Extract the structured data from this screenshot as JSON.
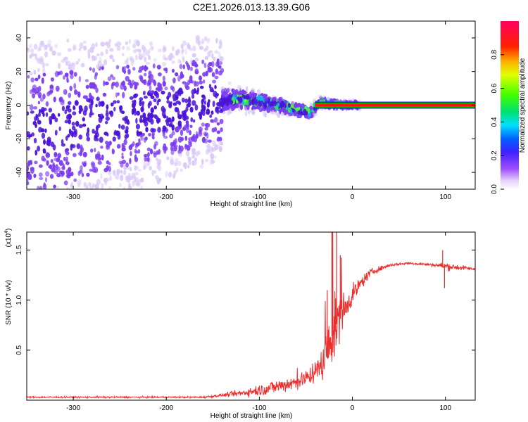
{
  "title": "C2E1.2026.013.13.39.G06",
  "colors": {
    "scatter_low": "#d9c8f7",
    "scatter_mid": "#7a3cf0",
    "scatter_high": "#4a14d8",
    "line": "#ee2d2d",
    "band_red": "#ff1010",
    "band_green": "#00c000",
    "band_blue": "#1010ff"
  },
  "chart_data": [
    {
      "type": "heatmap",
      "title": "C2E1.2026.013.13.39.G06",
      "xlabel": "Height of straight line (km)",
      "ylabel": "Frequency (Hz)",
      "xlim": [
        -350,
        132
      ],
      "ylim": [
        -50,
        50
      ],
      "xticks": [
        "-300",
        "-200",
        "-100",
        "0",
        "100"
      ],
      "xtick_values": [
        -300,
        -200,
        -100,
        0,
        100
      ],
      "yticks": [
        "40",
        "20",
        "0",
        "-20",
        "-40"
      ],
      "ytick_values": [
        40,
        20,
        0,
        -20,
        -40
      ],
      "colorbar": {
        "label": "Normalized spectral amplitude",
        "range": [
          0,
          1
        ],
        "ticks": [
          "0.0",
          "0.2",
          "0.4",
          "0.6",
          "0.8"
        ],
        "tick_values": [
          0.0,
          0.2,
          0.4,
          0.6,
          0.8
        ],
        "colormap": "rainbow (violet-blue-cyan-green-yellow-red-magenta)"
      },
      "density": {
        "x_break": -140,
        "spread_hz_left_edge": 60,
        "spread_hz_at_break": 40,
        "spread_hz_at_zero": 3,
        "center_track": [
          {
            "x": -350,
            "y": -18
          },
          {
            "x": -300,
            "y": -12
          },
          {
            "x": -250,
            "y": -7
          },
          {
            "x": -200,
            "y": -3
          },
          {
            "x": -150,
            "y": 2
          },
          {
            "x": -120,
            "y": 4
          },
          {
            "x": -100,
            "y": 2
          },
          {
            "x": -80,
            "y": 0
          },
          {
            "x": -60,
            "y": -3
          },
          {
            "x": -45,
            "y": -4
          },
          {
            "x": -35,
            "y": 2
          },
          {
            "x": -25,
            "y": 1
          },
          {
            "x": -10,
            "y": 0
          },
          {
            "x": 0,
            "y": 0
          }
        ]
      },
      "steady_band": {
        "x_start": -40,
        "x_end": 132,
        "y": 0,
        "amplitude": "max"
      }
    },
    {
      "type": "line",
      "title": "",
      "xlabel": "Height of straight line (km)",
      "ylabel": "SNR (10 * v/v)",
      "y_scale_label": "(x10",
      "y_scale_exponent": "4",
      "y_scale_close": ")",
      "xlim": [
        -350,
        132
      ],
      "ylim": [
        0,
        1.68
      ],
      "xticks": [
        "-300",
        "-200",
        "-100",
        "0",
        "100"
      ],
      "xtick_values": [
        -300,
        -200,
        -100,
        0,
        100
      ],
      "yticks": [
        "0.5",
        "1.0",
        "1.5"
      ],
      "ytick_values": [
        0.5,
        1.0,
        1.5
      ],
      "series": [
        {
          "envelope": [
            {
              "x": -350,
              "mean": 0.03,
              "noise": 0.01
            },
            {
              "x": -160,
              "mean": 0.03,
              "noise": 0.01
            },
            {
              "x": -140,
              "mean": 0.05,
              "noise": 0.02
            },
            {
              "x": -120,
              "mean": 0.07,
              "noise": 0.04
            },
            {
              "x": -100,
              "mean": 0.1,
              "noise": 0.07
            },
            {
              "x": -80,
              "mean": 0.14,
              "noise": 0.09
            },
            {
              "x": -60,
              "mean": 0.18,
              "noise": 0.1
            },
            {
              "x": -50,
              "mean": 0.22,
              "noise": 0.1
            },
            {
              "x": -40,
              "mean": 0.28,
              "noise": 0.12
            },
            {
              "x": -30,
              "mean": 0.4,
              "noise": 0.22
            },
            {
              "x": -25,
              "mean": 0.55,
              "noise": 0.35
            },
            {
              "x": -20,
              "mean": 0.7,
              "noise": 0.4
            },
            {
              "x": -10,
              "mean": 0.9,
              "noise": 0.2
            },
            {
              "x": 0,
              "mean": 1.05,
              "noise": 0.12
            },
            {
              "x": 10,
              "mean": 1.18,
              "noise": 0.08
            },
            {
              "x": 20,
              "mean": 1.28,
              "noise": 0.04
            },
            {
              "x": 40,
              "mean": 1.35,
              "noise": 0.02
            },
            {
              "x": 60,
              "mean": 1.37,
              "noise": 0.015
            },
            {
              "x": 90,
              "mean": 1.35,
              "noise": 0.02
            },
            {
              "x": 100,
              "mean": 1.34,
              "noise": 0.05
            },
            {
              "x": 132,
              "mean": 1.31,
              "noise": 0.015
            }
          ],
          "spikes": [
            {
              "x": -22,
              "y": 1.68
            },
            {
              "x": -17,
              "y": 1.68
            },
            {
              "x": -13,
              "y": 1.45
            },
            {
              "x": -27,
              "y": 1.1
            },
            {
              "x": 97,
              "y": 1.5
            },
            {
              "x": 99,
              "y": 1.12
            }
          ]
        }
      ]
    }
  ]
}
